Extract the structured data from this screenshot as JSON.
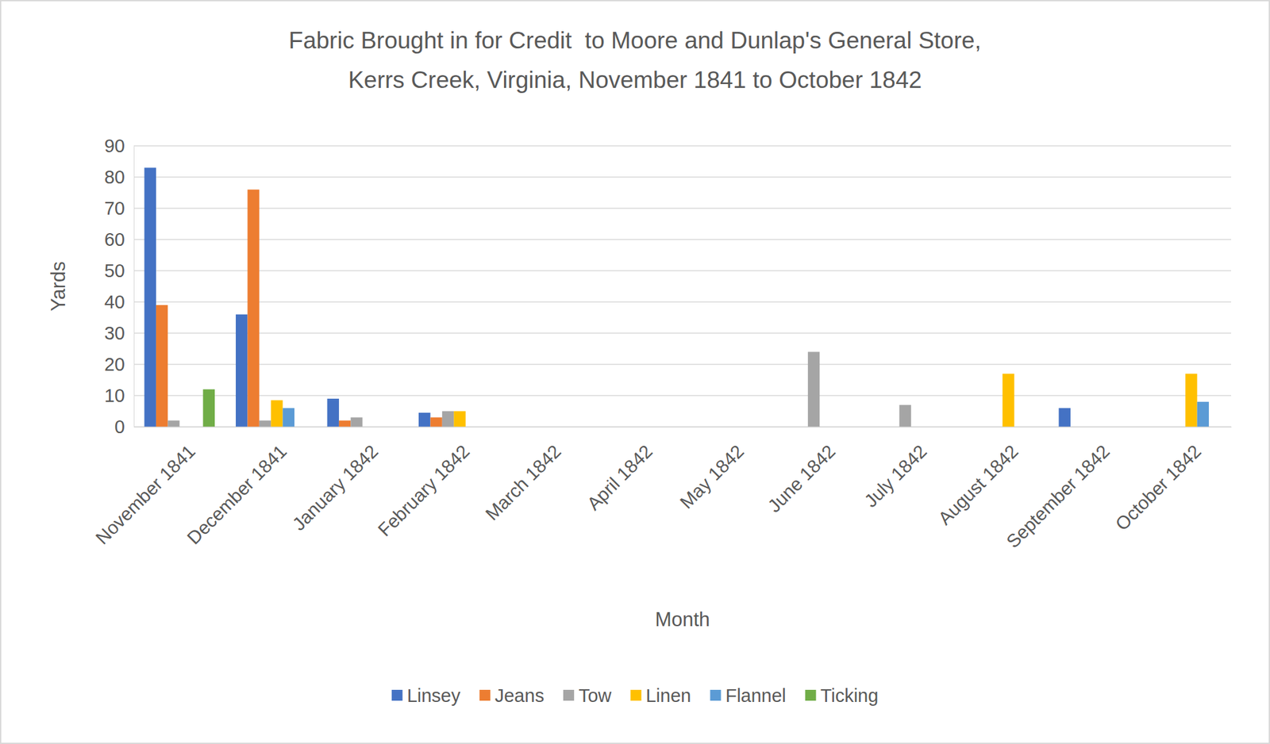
{
  "chart_data": {
    "type": "bar",
    "title": "Fabric Brought in for Credit  to Moore and Dunlap's General Store,\nKerrs Creek, Virginia, November 1841 to October 1842",
    "x_label": "Month",
    "y_label": "Yards",
    "categories": [
      "November 1841",
      "December 1841",
      "January 1842",
      "February 1842",
      "March 1842",
      "April 1842",
      "May 1842",
      "June 1842",
      "July 1842",
      "August 1842",
      "September 1842",
      "October 1842"
    ],
    "series": [
      {
        "name": "Linsey",
        "color": "#4472c4",
        "values": [
          83,
          36,
          9,
          4.5,
          0,
          0,
          0,
          0,
          0,
          0,
          6,
          0
        ]
      },
      {
        "name": "Jeans",
        "color": "#ed7d31",
        "values": [
          39,
          76,
          2,
          3,
          0,
          0,
          0,
          0,
          0,
          0,
          0,
          0
        ]
      },
      {
        "name": "Tow",
        "color": "#a5a5a5",
        "values": [
          2,
          2,
          3,
          5,
          0,
          0,
          0,
          24,
          7,
          0,
          0,
          0
        ]
      },
      {
        "name": "Linen",
        "color": "#ffc000",
        "values": [
          0,
          8.5,
          0,
          5,
          0,
          0,
          0,
          0,
          0,
          17,
          0,
          17
        ]
      },
      {
        "name": "Flannel",
        "color": "#5b9bd5",
        "values": [
          0,
          6,
          0,
          0,
          0,
          0,
          0,
          0,
          0,
          0,
          0,
          8
        ]
      },
      {
        "name": "Ticking",
        "color": "#70ad47",
        "values": [
          12,
          0,
          0,
          0,
          0,
          0,
          0,
          0,
          0,
          0,
          0,
          0
        ]
      }
    ],
    "ylim": [
      0,
      90
    ],
    "yticks": [
      0,
      10,
      20,
      30,
      40,
      50,
      60,
      70,
      80,
      90
    ],
    "grid": true,
    "legend": "bottom"
  }
}
